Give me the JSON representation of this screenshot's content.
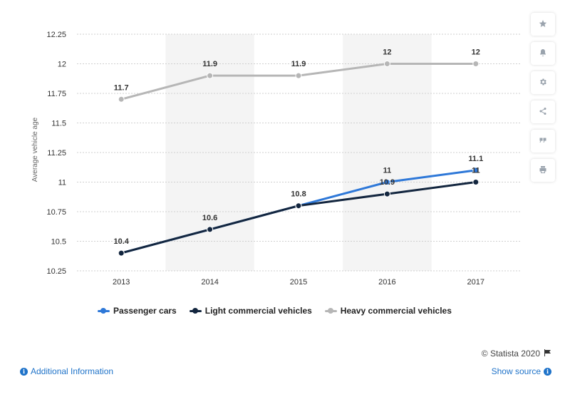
{
  "chart_data": {
    "type": "line",
    "title": "",
    "xlabel": "",
    "ylabel": "Average vehicle age",
    "categories": [
      "2013",
      "2014",
      "2015",
      "2016",
      "2017"
    ],
    "y_ticks": [
      "12.25",
      "12",
      "11.75",
      "11.5",
      "11.25",
      "11",
      "10.75",
      "10.5",
      "10.25"
    ],
    "ylim": [
      10.25,
      12.25
    ],
    "grid": "horizontal dotted",
    "series": [
      {
        "name": "Passenger cars",
        "color": "#2e78d8",
        "values": [
          10.4,
          10.6,
          10.8,
          11,
          11.1
        ],
        "labels": [
          "",
          "",
          "",
          "11",
          "11.1"
        ]
      },
      {
        "name": "Light commercial vehicles",
        "color": "#13263f",
        "values": [
          10.4,
          10.6,
          10.8,
          10.9,
          11
        ],
        "labels": [
          "10.4",
          "10.6",
          "10.8",
          "10.9",
          "11"
        ]
      },
      {
        "name": "Heavy commercial vehicles",
        "color": "#b6b6b6",
        "values": [
          11.7,
          11.9,
          11.9,
          12,
          12
        ],
        "labels": [
          "11.7",
          "11.9",
          "11.9",
          "12",
          "12"
        ]
      }
    ],
    "legend_position": "bottom-left"
  },
  "toolbar": {
    "icons": [
      "star-icon",
      "bell-icon",
      "gear-icon",
      "share-icon",
      "quote-icon",
      "print-icon"
    ]
  },
  "footer": {
    "credit": "© Statista 2020",
    "additional_info": "Additional Information",
    "show_source": "Show source"
  }
}
